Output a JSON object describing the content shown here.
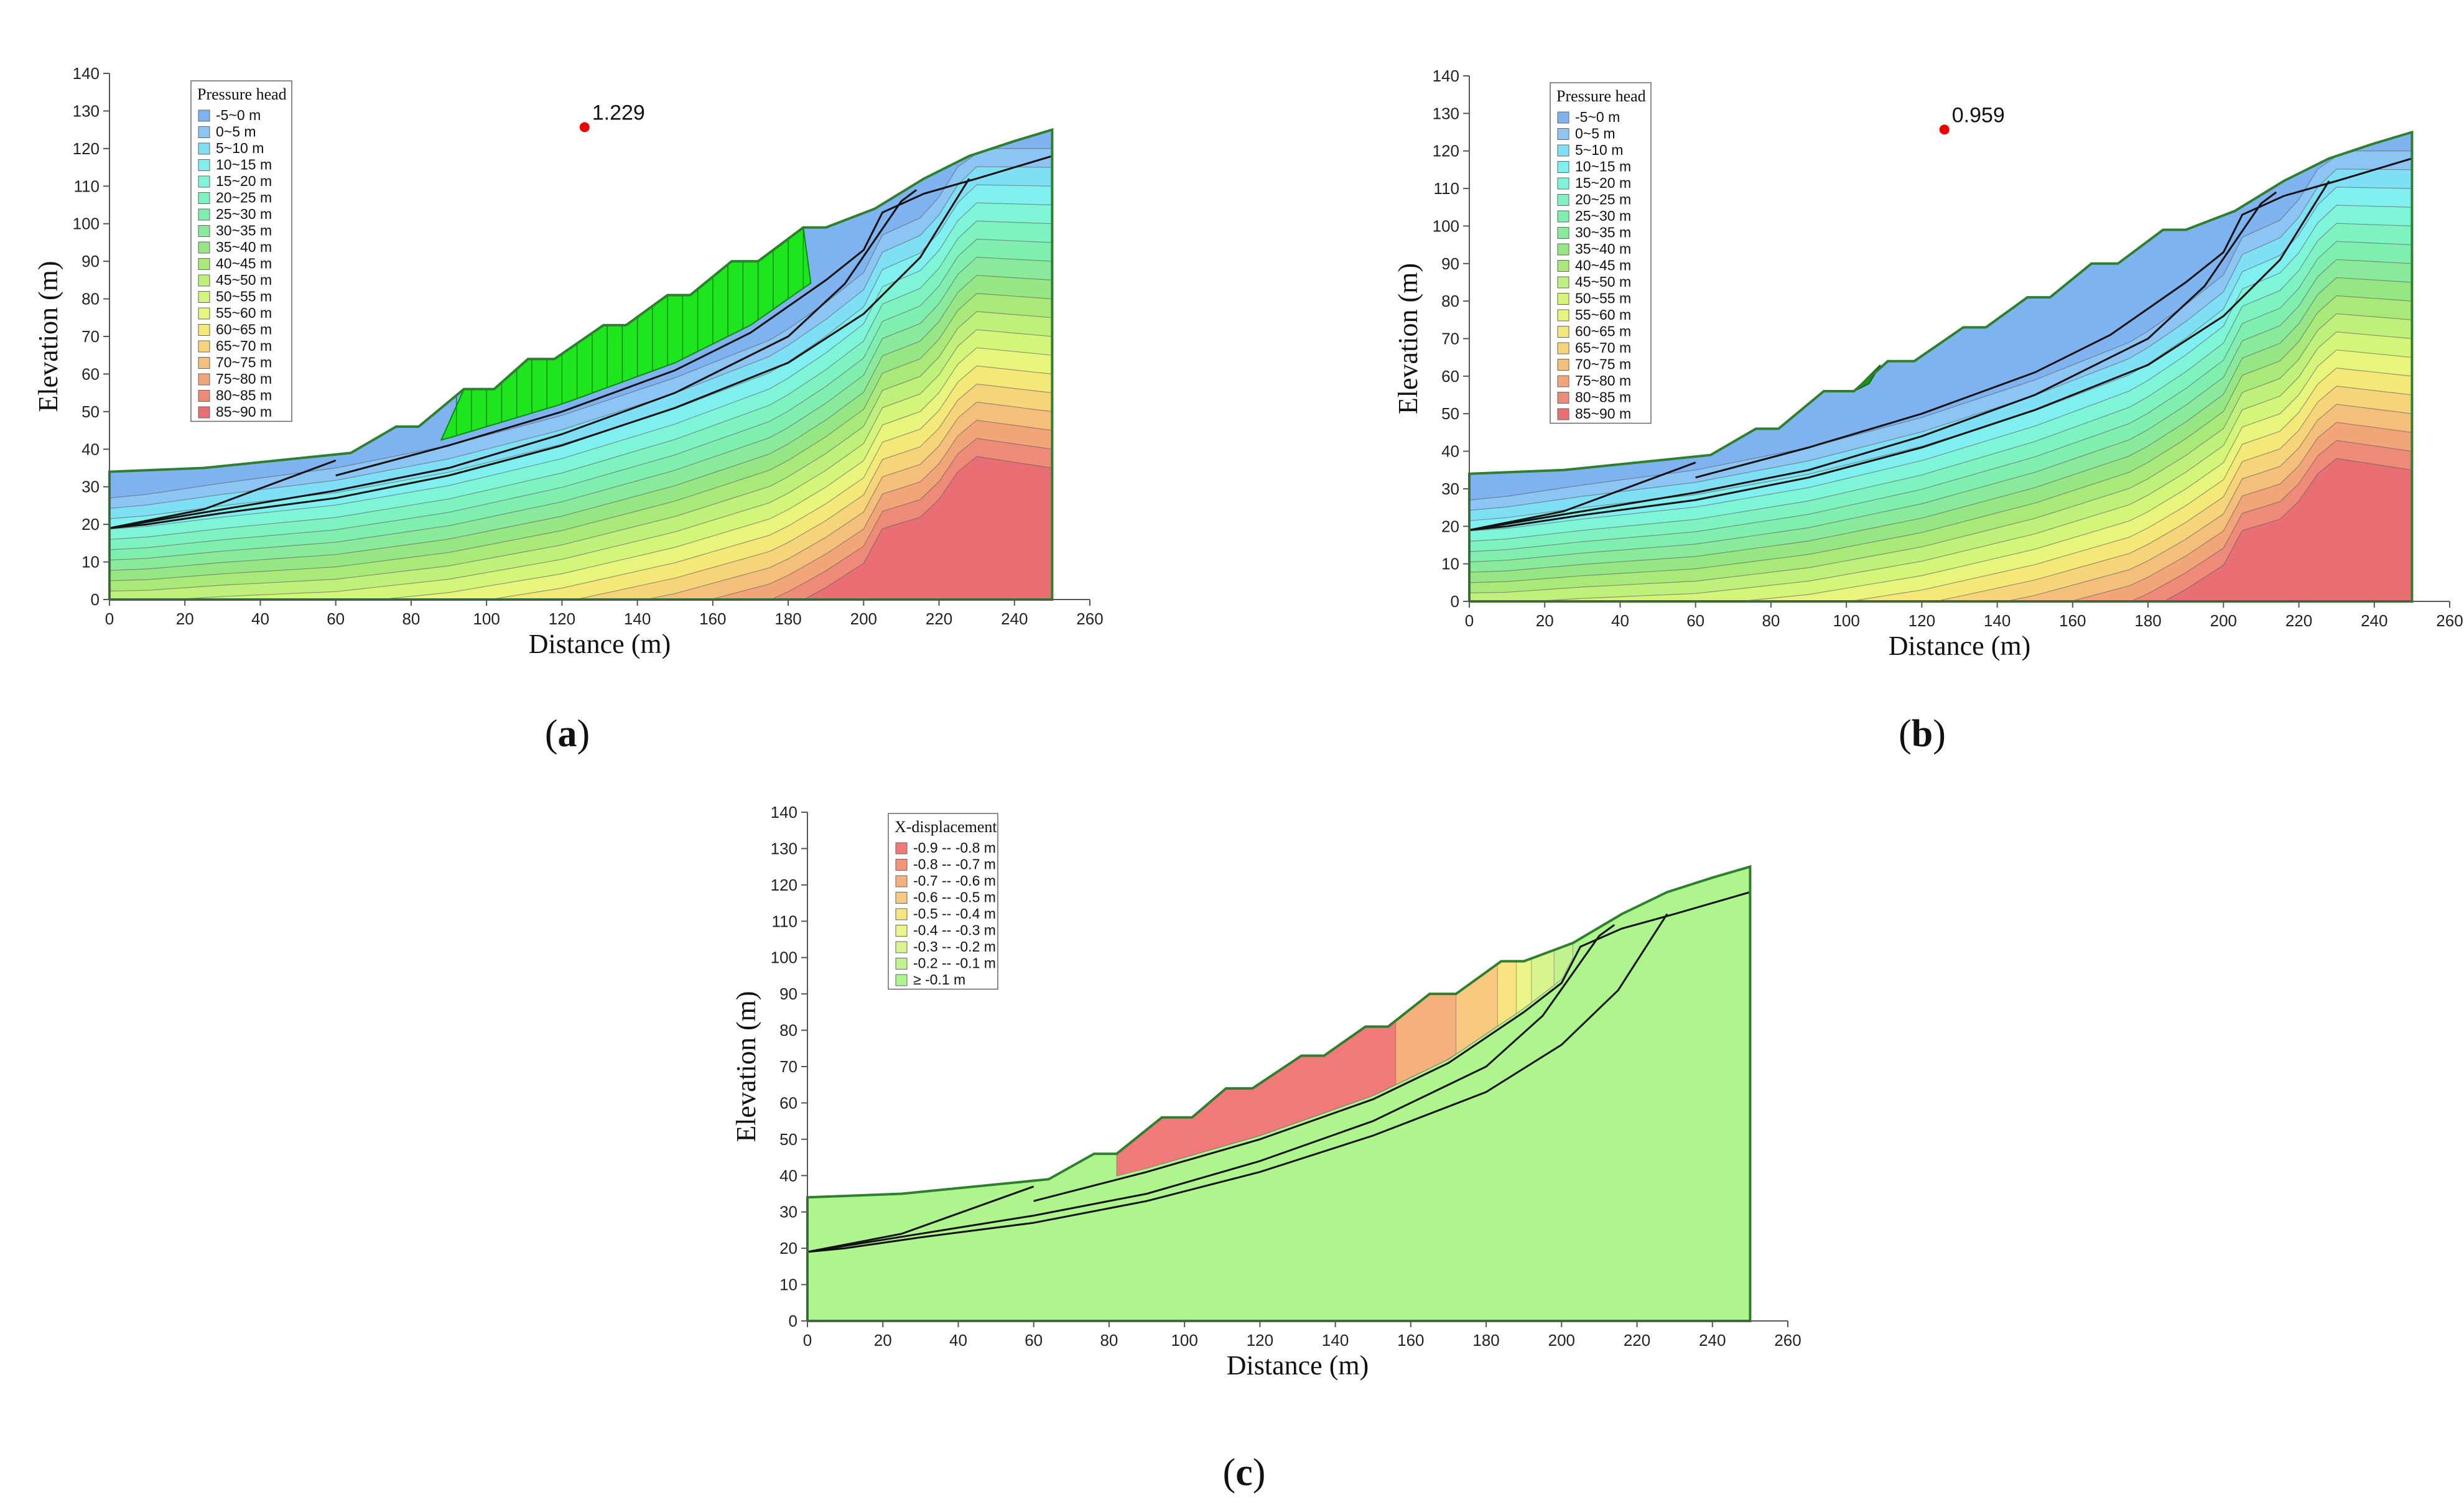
{
  "chart_data": [
    {
      "id": "a",
      "type": "contour",
      "panel_label": "a",
      "xlabel": "Distance (m)",
      "ylabel": "Elevation (m)",
      "xlim": [
        0,
        260
      ],
      "ylim": [
        0,
        140
      ],
      "xticks": [
        0,
        20,
        40,
        60,
        80,
        100,
        120,
        140,
        160,
        180,
        200,
        220,
        240,
        260
      ],
      "yticks": [
        0,
        10,
        20,
        30,
        40,
        50,
        60,
        70,
        80,
        90,
        100,
        110,
        120,
        130,
        140
      ],
      "legend": {
        "title": "Pressure head",
        "entries": [
          "-5~0 m",
          "0~5 m",
          "5~10 m",
          "10~15 m",
          "15~20 m",
          "20~25 m",
          "25~30 m",
          "30~35 m",
          "35~40 m",
          "40~45 m",
          "45~50 m",
          "50~55 m",
          "55~60 m",
          "60~65 m",
          "65~70 m",
          "70~75 m",
          "75~80 m",
          "80~85 m",
          "85~90 m"
        ]
      },
      "annotation": {
        "text": "1.229",
        "x": 126,
        "y": 129
      }
    },
    {
      "id": "b",
      "type": "contour",
      "panel_label": "b",
      "xlabel": "Distance (m)",
      "ylabel": "Elevation (m)",
      "xlim": [
        0,
        260
      ],
      "ylim": [
        0,
        140
      ],
      "xticks": [
        0,
        20,
        40,
        60,
        80,
        100,
        120,
        140,
        160,
        180,
        200,
        220,
        240,
        260
      ],
      "yticks": [
        0,
        10,
        20,
        30,
        40,
        50,
        60,
        70,
        80,
        90,
        100,
        110,
        120,
        130,
        140
      ],
      "legend": {
        "title": "Pressure head",
        "entries": [
          "-5~0 m",
          "0~5 m",
          "5~10 m",
          "10~15 m",
          "15~20 m",
          "20~25 m",
          "25~30 m",
          "30~35 m",
          "35~40 m",
          "40~45 m",
          "45~50 m",
          "50~55 m",
          "55~60 m",
          "60~65 m",
          "65~70 m",
          "70~75 m",
          "75~80 m",
          "80~85 m",
          "85~90 m"
        ]
      },
      "annotation": {
        "text": "0.959",
        "x": 126,
        "y": 129
      }
    },
    {
      "id": "c",
      "type": "contour",
      "panel_label": "c",
      "xlabel": "Distance (m)",
      "ylabel": "Elevation (m)",
      "xlim": [
        0,
        260
      ],
      "ylim": [
        0,
        140
      ],
      "xticks": [
        0,
        20,
        40,
        60,
        80,
        100,
        120,
        140,
        160,
        180,
        200,
        220,
        240,
        260
      ],
      "yticks": [
        0,
        10,
        20,
        30,
        40,
        50,
        60,
        70,
        80,
        90,
        100,
        110,
        120,
        130,
        140
      ],
      "legend": {
        "title": "X-displacement",
        "entries": [
          "-0.9 -- -0.8 m",
          "-0.8 -- -0.7 m",
          "-0.7 -- -0.6 m",
          "-0.6 -- -0.5 m",
          "-0.5 -- -0.4 m",
          "-0.4 -- -0.3 m",
          "-0.3 -- -0.2 m",
          "-0.2 -- -0.1 m",
          "≥ -0.1 m"
        ]
      }
    }
  ],
  "colors": {
    "pressure_scale": [
      "#7fb3f0",
      "#8cc4f4",
      "#7fe0f5",
      "#7ff0ef",
      "#7ff5d8",
      "#7ff2c2",
      "#80eeae",
      "#88ea9a",
      "#97e685",
      "#a9e97a",
      "#bff07c",
      "#d3f57a",
      "#e8f57c",
      "#f4e879",
      "#f6d57a",
      "#f4bf7a",
      "#f2a579",
      "#ee8a78",
      "#ea6f75"
    ],
    "displacement_scale": [
      "#f07a7a",
      "#f4957a",
      "#f6b07c",
      "#f8c97e",
      "#f7e380",
      "#edf48a",
      "#d9f48e",
      "#c2f18f",
      "#adf58c"
    ],
    "slip_mass": "#1ee61e",
    "outline": "#2f7f2f",
    "fos_marker": "#ee0000"
  }
}
